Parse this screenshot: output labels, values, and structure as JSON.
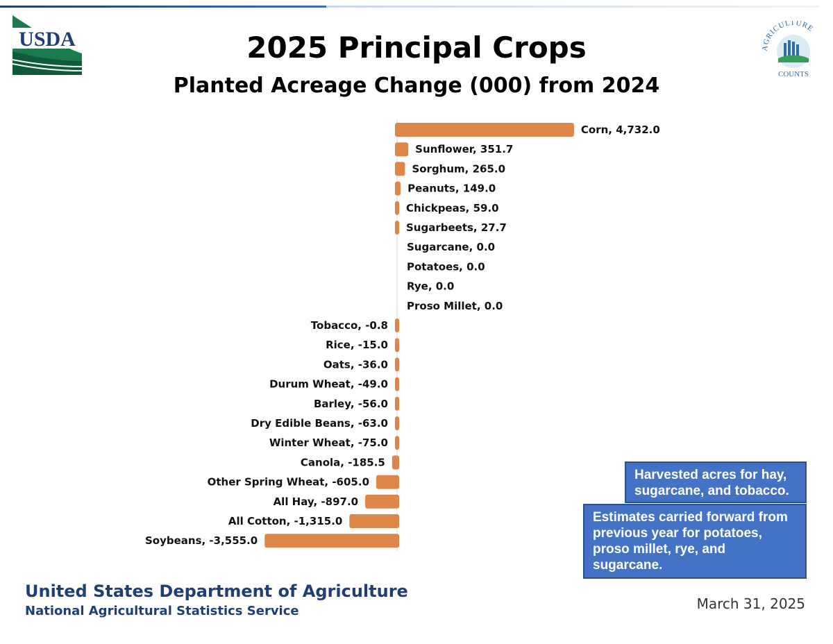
{
  "header": {
    "title": "2025 Principal Crops",
    "subtitle": "Planted Acreage Change (000) from 2024",
    "usda_logo_text": "USDA",
    "ag_logo_text": "AGRICULTURE COUNTS"
  },
  "chart_data": {
    "type": "bar",
    "orientation": "horizontal",
    "title": "2025 Principal Crops",
    "subtitle": "Planted Acreage Change (000) from 2024",
    "categories": [
      "Corn",
      "Sunflower",
      "Sorghum",
      "Peanuts",
      "Chickpeas",
      "Sugarbeets",
      "Sugarcane",
      "Potatoes",
      "Rye",
      "Proso Millet",
      "Tobacco",
      "Rice",
      "Oats",
      "Durum Wheat",
      "Barley",
      "Dry Edible Beans",
      "Winter Wheat",
      "Canola",
      "Other Spring Wheat",
      "All Hay",
      "All Cotton",
      "Soybeans"
    ],
    "values": [
      4732.0,
      351.7,
      265.0,
      149.0,
      59.0,
      27.7,
      0.0,
      0.0,
      0.0,
      0.0,
      -0.8,
      -15.0,
      -36.0,
      -49.0,
      -56.0,
      -63.0,
      -75.0,
      -185.5,
      -605.0,
      -897.0,
      -1315.0,
      -3555.0
    ],
    "labels": [
      "Corn, 4,732.0",
      "Sunflower, 351.7",
      "Sorghum, 265.0",
      "Peanuts, 149.0",
      "Chickpeas, 59.0",
      "Sugarbeets, 27.7",
      "Sugarcane, 0.0",
      "Potatoes, 0.0",
      "Rye, 0.0",
      "Proso Millet, 0.0",
      "Tobacco, -0.8",
      "Rice, -15.0",
      "Oats, -36.0",
      "Durum Wheat, -49.0",
      "Barley, -56.0",
      "Dry Edible Beans, -63.0",
      "Winter Wheat, -75.0",
      "Canola, -185.5",
      "Other Spring Wheat, -605.0",
      "All Hay, -897.0",
      "All Cotton, -1,315.0",
      "Soybeans, -3,555.0"
    ],
    "bar_color": "#e0854a",
    "grid": false,
    "xlabel": "",
    "ylabel": ""
  },
  "notes": {
    "harvested": "Harvested acres for hay, sugarcane, and tobacco.",
    "carried_forward": "Estimates carried forward from previous year for potatoes, proso millet, rye, and sugarcane."
  },
  "footer": {
    "agency": "United States Department of Agriculture",
    "service": "National Agricultural Statistics Service",
    "date": "March 31, 2025"
  },
  "colors": {
    "bar": "#e0854a",
    "note_bg": "#4472c4",
    "footer_text": "#1f3f74"
  }
}
